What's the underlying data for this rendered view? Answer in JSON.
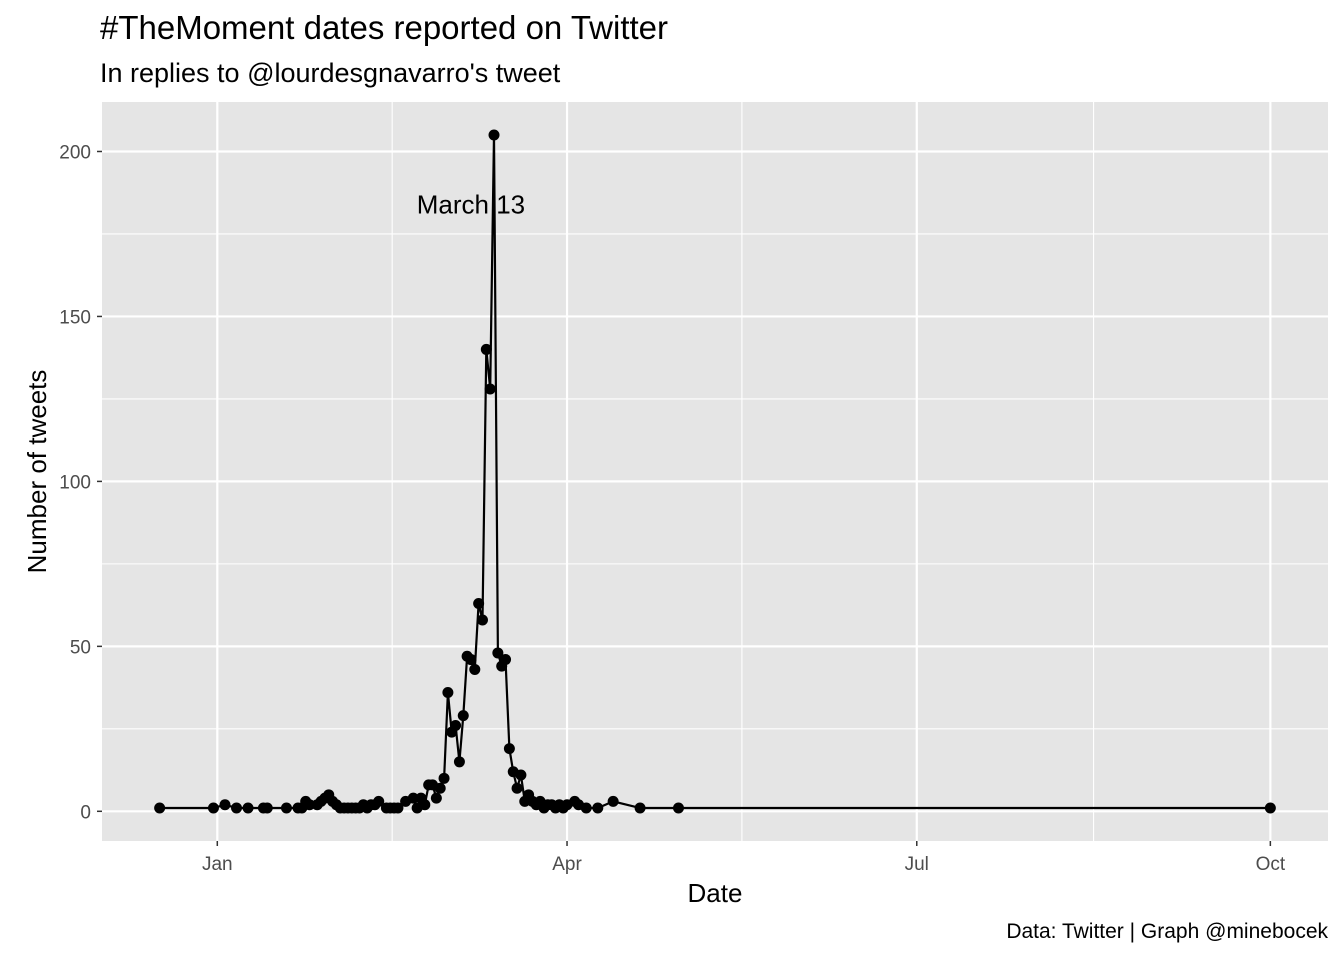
{
  "chart_data": {
    "type": "line",
    "title": "#TheMoment dates reported on Twitter",
    "subtitle": "In replies to @lourdesgnavarro's tweet",
    "caption": "Data: Twitter | Graph @minebocek",
    "xlabel": "Date",
    "ylabel": "Number of tweets",
    "x_ticks": [
      {
        "date": "2020-01-01",
        "label": "Jan"
      },
      {
        "date": "2020-04-01",
        "label": "Apr"
      },
      {
        "date": "2020-07-01",
        "label": "Jul"
      },
      {
        "date": "2020-10-01",
        "label": "Oct"
      }
    ],
    "y_ticks": [
      0,
      50,
      100,
      150,
      200
    ],
    "xlim": [
      "2019-12-02",
      "2020-10-16"
    ],
    "ylim": [
      -9,
      215
    ],
    "grid": true,
    "background": "#e5e5e5",
    "gridline_color": "#ffffff",
    "line_color": "#000000",
    "point_color": "#000000",
    "annotation": {
      "label": "March 13",
      "date": "2020-03-07",
      "value": 184
    },
    "series": [
      {
        "x": [
          "2019-12-17",
          "2019-12-31",
          "2020-01-03",
          "2020-01-06",
          "2020-01-09",
          "2020-01-13",
          "2020-01-14",
          "2020-01-19",
          "2020-01-22",
          "2020-01-23",
          "2020-01-24",
          "2020-01-25",
          "2020-01-27",
          "2020-01-28",
          "2020-01-29",
          "2020-01-30",
          "2020-01-31",
          "2020-02-01",
          "2020-02-02",
          "2020-02-03",
          "2020-02-04",
          "2020-02-05",
          "2020-02-06",
          "2020-02-07",
          "2020-02-08",
          "2020-02-09",
          "2020-02-10",
          "2020-02-11",
          "2020-02-12",
          "2020-02-14",
          "2020-02-15",
          "2020-02-16",
          "2020-02-17",
          "2020-02-19",
          "2020-02-21",
          "2020-02-22",
          "2020-02-23",
          "2020-02-24",
          "2020-02-25",
          "2020-02-26",
          "2020-02-27",
          "2020-02-28",
          "2020-02-29",
          "2020-03-01",
          "2020-03-02",
          "2020-03-03",
          "2020-03-04",
          "2020-03-05",
          "2020-03-06",
          "2020-03-07",
          "2020-03-08",
          "2020-03-09",
          "2020-03-10",
          "2020-03-11",
          "2020-03-12",
          "2020-03-13",
          "2020-03-14",
          "2020-03-15",
          "2020-03-16",
          "2020-03-17",
          "2020-03-18",
          "2020-03-19",
          "2020-03-20",
          "2020-03-21",
          "2020-03-22",
          "2020-03-23",
          "2020-03-24",
          "2020-03-25",
          "2020-03-26",
          "2020-03-27",
          "2020-03-28",
          "2020-03-29",
          "2020-03-30",
          "2020-03-31",
          "2020-04-01",
          "2020-04-03",
          "2020-04-04",
          "2020-04-06",
          "2020-04-09",
          "2020-04-13",
          "2020-04-20",
          "2020-04-30",
          "2020-10-01"
        ],
        "y": [
          1,
          1,
          2,
          1,
          1,
          1,
          1,
          1,
          1,
          1,
          3,
          2,
          2,
          3,
          4,
          5,
          3,
          2,
          1,
          1,
          1,
          1,
          1,
          1,
          2,
          1,
          2,
          2,
          3,
          1,
          1,
          1,
          1,
          3,
          4,
          1,
          4,
          2,
          8,
          8,
          4,
          7,
          10,
          36,
          24,
          26,
          15,
          29,
          47,
          46,
          43,
          63,
          58,
          140,
          128,
          205,
          48,
          44,
          46,
          19,
          12,
          7,
          11,
          3,
          5,
          3,
          2,
          3,
          1,
          2,
          2,
          1,
          2,
          1,
          2,
          3,
          2,
          1,
          1,
          3,
          1,
          1,
          1
        ]
      }
    ]
  }
}
